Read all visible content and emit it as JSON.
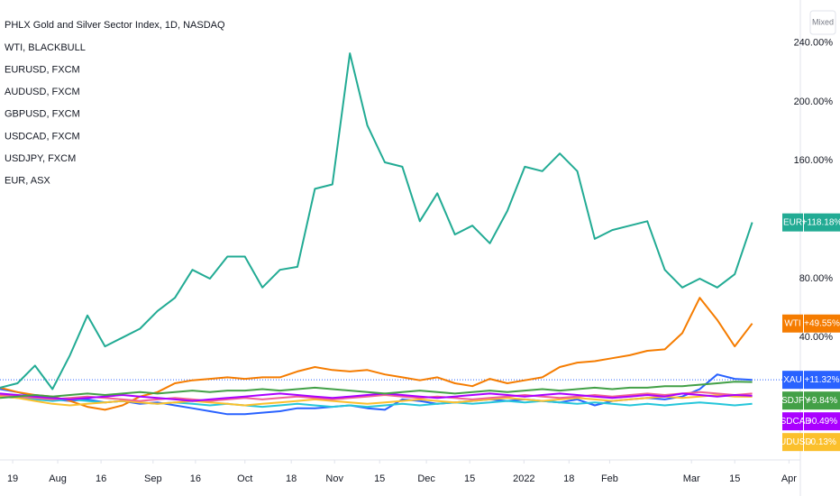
{
  "chart_data": {
    "type": "line",
    "title": "PHLX Gold and Silver Sector Index, 1D, NASDAQ",
    "scale_mode": "Mixed",
    "xlim": [
      0,
      183
    ],
    "xticks": [
      {
        "value": 2.9,
        "label": "19"
      },
      {
        "value": 13.2,
        "label": "Aug"
      },
      {
        "value": 23.1,
        "label": "16"
      },
      {
        "value": 35,
        "label": "Sep"
      },
      {
        "value": 44.7,
        "label": "16"
      },
      {
        "value": 56,
        "label": "Oct"
      },
      {
        "value": 66.6,
        "label": "18"
      },
      {
        "value": 76.5,
        "label": "Nov"
      },
      {
        "value": 86.8,
        "label": "15"
      },
      {
        "value": 97.5,
        "label": "Dec"
      },
      {
        "value": 107.4,
        "label": "15"
      },
      {
        "value": 119.8,
        "label": "2022"
      },
      {
        "value": 130.1,
        "label": "18"
      },
      {
        "value": 139.4,
        "label": "Feb"
      },
      {
        "value": 158.1,
        "label": "Mar"
      },
      {
        "value": 168,
        "label": "15"
      },
      {
        "value": 180.4,
        "label": "Apr"
      }
    ],
    "ylim": [
      -40,
      260
    ],
    "yticks": [
      {
        "value": 40,
        "label": "40.00%"
      },
      {
        "value": 80,
        "label": "80.00%"
      },
      {
        "value": 160,
        "label": "160.00%"
      },
      {
        "value": 200,
        "label": "200.00%"
      },
      {
        "value": 240,
        "label": "240.00%"
      }
    ],
    "grid": false,
    "x": [
      0,
      4,
      8,
      12,
      16,
      20,
      24,
      28,
      32,
      36,
      40,
      44,
      48,
      52,
      56,
      60,
      64,
      68,
      72,
      76,
      80,
      84,
      88,
      92,
      96,
      100,
      104,
      108,
      112,
      116,
      120,
      124,
      128,
      132,
      136,
      140,
      144,
      148,
      152,
      156,
      160,
      164,
      168,
      172
    ],
    "series": [
      {
        "name": "XAU",
        "color": "#2962ff",
        "price_line": true,
        "last_label": "+11.32%",
        "values": [
          5,
          3,
          0,
          -2,
          -3,
          -2,
          -4,
          -3,
          -5,
          -4,
          -6,
          -8,
          -10,
          -12,
          -12,
          -11,
          -10,
          -8,
          -8,
          -7,
          -6,
          -8,
          -9,
          -2,
          -3,
          -5,
          -4,
          -3,
          -2,
          -3,
          -2,
          -3,
          -4,
          -2,
          -6,
          -3,
          -2,
          -1,
          -2,
          0,
          5,
          15,
          12,
          11.32
        ]
      },
      {
        "name": "WTI",
        "legend": "WTI, BLACKBULL",
        "color": "#f57c00",
        "last_label": "+49.55%",
        "values": [
          6,
          3,
          1,
          0,
          -3,
          -7,
          -9,
          -6,
          0,
          3,
          9,
          11,
          12,
          13,
          12,
          13,
          13,
          17,
          20,
          18,
          17,
          18,
          15,
          13,
          11,
          13,
          9,
          7,
          12,
          9,
          11,
          13,
          20,
          23,
          24,
          26,
          28,
          31,
          32,
          43,
          67,
          52,
          34,
          49.55
        ]
      },
      {
        "legend": "EURUSD, FXCM",
        "color": "#26c6da",
        "values": [
          0,
          -1,
          -2,
          -3,
          -2,
          -3,
          -4,
          -3,
          -4,
          -5,
          -4,
          -5,
          -6,
          -5,
          -6,
          -7,
          -6,
          -5,
          -6,
          -7,
          -6,
          -7,
          -6,
          -5,
          -6,
          -5,
          -4,
          -5,
          -4,
          -3,
          -4,
          -3,
          -4,
          -5,
          -4,
          -5,
          -6,
          -5,
          -6,
          -5,
          -4,
          -5,
          -6,
          -5
        ]
      },
      {
        "name": "AUDUSD",
        "legend": "AUDUSD, FXCM",
        "color": "#fbc02d",
        "last_label": "-0.13%",
        "values": [
          0,
          -1,
          -3,
          -5,
          -6,
          -5,
          -4,
          -3,
          -4,
          -5,
          -4,
          -3,
          -4,
          -5,
          -6,
          -5,
          -4,
          -3,
          -2,
          -3,
          -4,
          -5,
          -4,
          -3,
          -2,
          -3,
          -4,
          -3,
          -2,
          -1,
          -2,
          -3,
          -2,
          -1,
          -2,
          -3,
          -2,
          -1,
          0,
          -1,
          0,
          1,
          0,
          -0.13
        ]
      },
      {
        "legend": "GBPUSD, FXCM",
        "color": "#f06292",
        "values": [
          1,
          0,
          -1,
          -2,
          -1,
          0,
          -1,
          -2,
          -3,
          -2,
          -1,
          -2,
          -3,
          -2,
          -1,
          -2,
          -1,
          0,
          -1,
          -2,
          -1,
          0,
          1,
          0,
          -1,
          0,
          -1,
          -2,
          -1,
          0,
          1,
          0,
          -1,
          0,
          1,
          0,
          1,
          2,
          1,
          2,
          3,
          2,
          1,
          2
        ]
      },
      {
        "name": "USDCAD",
        "legend": "USDCAD, FXCM",
        "color": "#aa00ff",
        "last_label": "+0.49%",
        "values": [
          2,
          1,
          0,
          -1,
          -2,
          -1,
          0,
          1,
          0,
          -1,
          -2,
          -3,
          -2,
          -1,
          0,
          1,
          2,
          1,
          0,
          -1,
          0,
          1,
          2,
          1,
          0,
          -1,
          0,
          1,
          2,
          1,
          0,
          1,
          2,
          1,
          0,
          -1,
          0,
          1,
          0,
          2,
          1,
          0,
          1,
          0.49
        ]
      },
      {
        "name": "USDJPY",
        "legend": "USDJPY, FXCM",
        "color": "#43a047",
        "last_label": "+9.84%",
        "values": [
          -1,
          0,
          1,
          0,
          1,
          2,
          1,
          2,
          3,
          2,
          3,
          4,
          3,
          4,
          4,
          5,
          4,
          5,
          6,
          5,
          4,
          3,
          2,
          3,
          4,
          3,
          2,
          3,
          4,
          3,
          4,
          5,
          4,
          5,
          6,
          5,
          6,
          6,
          7,
          7,
          8,
          9,
          10,
          9.84
        ]
      },
      {
        "name": "EUR",
        "legend": "EUR, ASX",
        "color": "#22ab94",
        "last_label": "+118.18%",
        "values": [
          6,
          9,
          21,
          5,
          28,
          55,
          34,
          40,
          46,
          58,
          67,
          86,
          80,
          95,
          95,
          74,
          86,
          88,
          141,
          144,
          233,
          184,
          159,
          156,
          119,
          138,
          110,
          116,
          104,
          126,
          156,
          153,
          165,
          153,
          107,
          113,
          116,
          119,
          86,
          74,
          80,
          74,
          83,
          118.18
        ]
      }
    ]
  }
}
